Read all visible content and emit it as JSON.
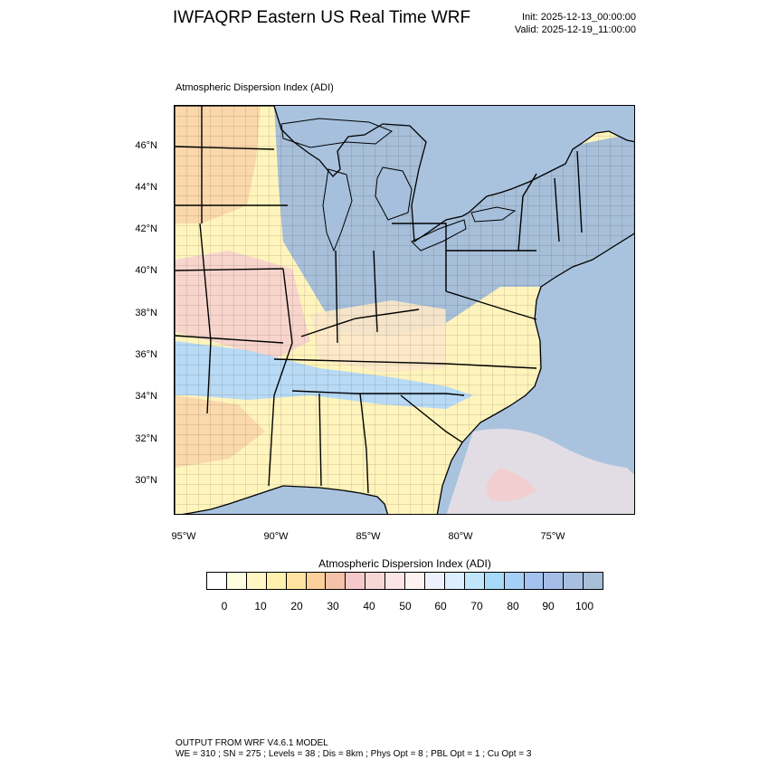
{
  "header": {
    "title": "IWFAQRP Eastern US Real Time WRF",
    "init": "Init: 2025-12-13_00:00:00",
    "valid": "Valid: 2025-12-19_11:00:00"
  },
  "map": {
    "subtitle": "Atmospheric Dispersion Index   (ADI)",
    "lat_labels": [
      "46°N",
      "44°N",
      "42°N",
      "40°N",
      "38°N",
      "36°N",
      "34°N",
      "32°N",
      "30°N"
    ],
    "lon_labels": [
      "95°W",
      "90°W",
      "85°W",
      "80°W",
      "75°W"
    ],
    "colors": {
      "water": "#a9c3df",
      "great_lakes": "#a5bfdc",
      "low_adi_yellow": "#fff4bc",
      "mid_adi_orange": "#f9d2a8",
      "mid_adi_pink": "#f6cfcf",
      "high_adi_blue": "#b8daf5",
      "county_lines": "#000000"
    }
  },
  "colorbar": {
    "title": "Atmospheric Dispersion Index  (ADI)",
    "colors": [
      "#ffffff",
      "#fffde0",
      "#fff6c4",
      "#fff0ae",
      "#ffe3a0",
      "#fbd09a",
      "#f4c2a8",
      "#f5c9c9",
      "#f8d6d6",
      "#fbe4e4",
      "#fdf2f2",
      "#eef1fc",
      "#dceeff",
      "#bfe6fb",
      "#a7d9f8",
      "#a6cff5",
      "#a4c1ef",
      "#a5bde6",
      "#a8bfe0",
      "#a7bed7"
    ],
    "labels": [
      "0",
      "10",
      "20",
      "30",
      "40",
      "50",
      "60",
      "70",
      "80",
      "90",
      "100"
    ]
  },
  "footer": {
    "line1": "OUTPUT FROM WRF V4.6.1 MODEL",
    "line2": "WE = 310 ; SN = 275 ; Levels = 38 ; Dis = 8km ; Phys Opt = 8 ; PBL Opt = 1 ; Cu Opt = 3"
  }
}
